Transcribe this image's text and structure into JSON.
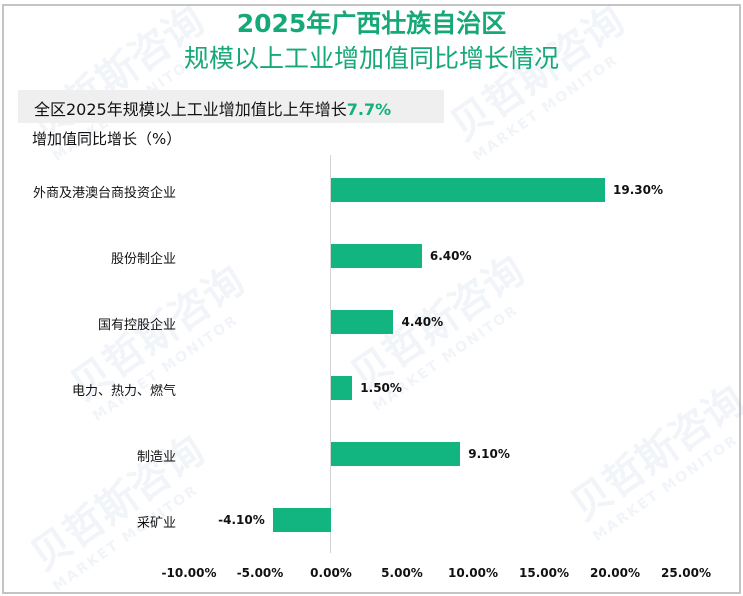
{
  "title": {
    "line1": "2025年广西壮族自治区",
    "line2": "规模以上工业增加值同比增长情况"
  },
  "summary": {
    "text": "全区2025年规模以上工业增加值比上年增长",
    "value": "7.7%"
  },
  "y_axis_title": "增加值同比增长（%）",
  "watermark": {
    "cn": "贝哲斯咨询",
    "en": "MARKET MONITOR"
  },
  "colors": {
    "title": "#17a878",
    "bar": "#12b580",
    "highlight": "#12b07c",
    "summary_bg": "#efefef",
    "border": "#c4c4c4"
  },
  "chart_data": {
    "type": "bar",
    "orientation": "horizontal",
    "title": "2025年广西壮族自治区规模以上工业增加值同比增长情况",
    "subtitle": "全区2025年规模以上工业增加值比上年增长7.7%",
    "xlabel": "",
    "ylabel": "增加值同比增长（%）",
    "categories": [
      "外商及港澳台商投资企业",
      "股份制企业",
      "国有控股企业",
      "电力、热力、燃气",
      "制造业",
      "采矿业"
    ],
    "values": [
      19.3,
      6.4,
      4.4,
      1.5,
      9.1,
      -4.1
    ],
    "value_labels": [
      "19.30%",
      "6.40%",
      "4.40%",
      "1.50%",
      "9.10%",
      "-4.10%"
    ],
    "xlim": [
      -10,
      25
    ],
    "x_ticks": [
      "-10.00%",
      "-5.00%",
      "0.00%",
      "5.00%",
      "10.00%",
      "15.00%",
      "20.00%",
      "25.00%"
    ],
    "grid": false,
    "legend": "none"
  }
}
